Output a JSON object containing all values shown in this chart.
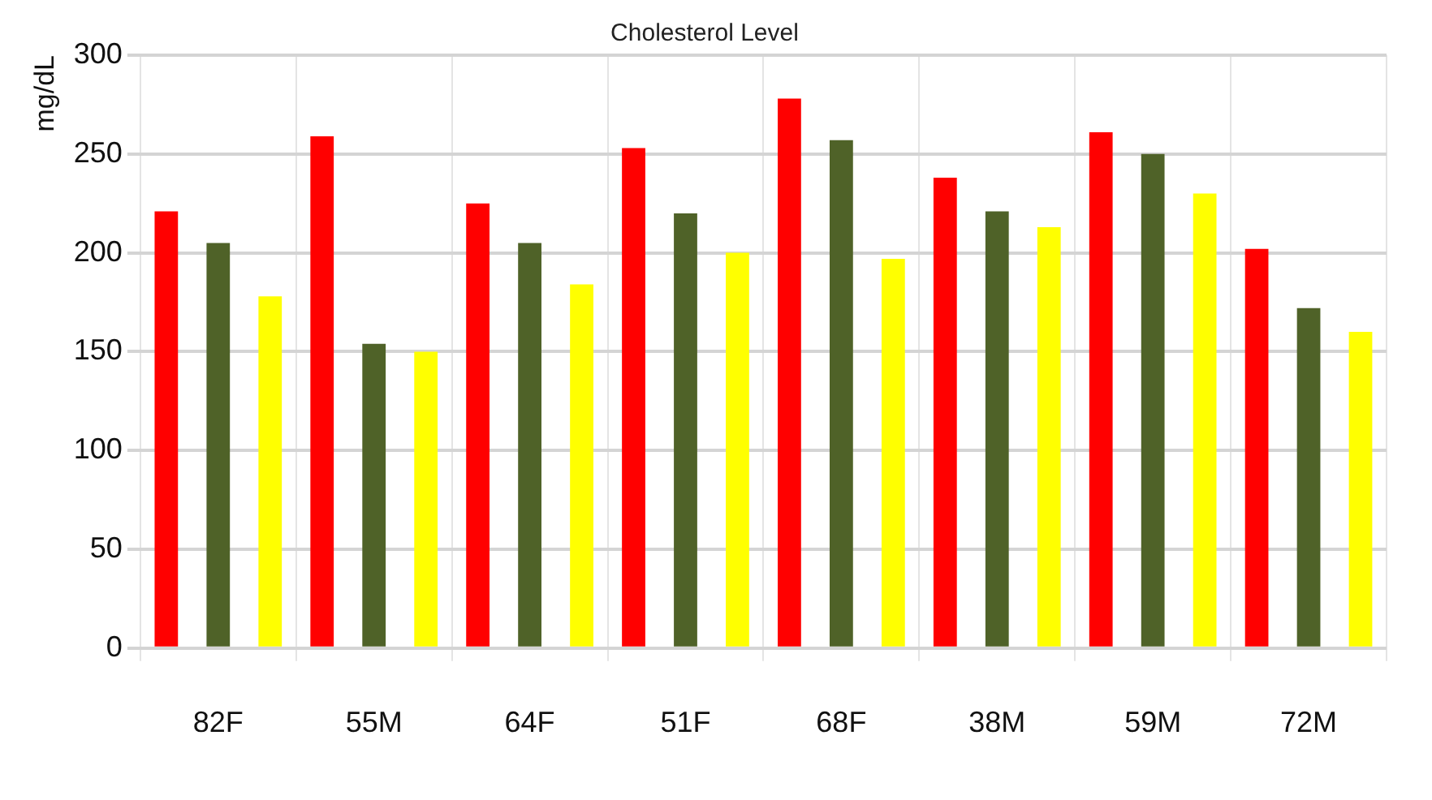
{
  "chart_data": {
    "type": "bar",
    "title": "Cholesterol Level",
    "ylabel": "mg/dL",
    "categories": [
      "82F",
      "55M",
      "64F",
      "51F",
      "68F",
      "38M",
      "59M",
      "72M"
    ],
    "series": [
      {
        "color": "#ff0000",
        "values": [
          221,
          259,
          225,
          253,
          278,
          238,
          261,
          202
        ]
      },
      {
        "color": "#4f6228",
        "values": [
          205,
          154,
          205,
          220,
          257,
          221,
          250,
          172
        ]
      },
      {
        "color": "#ffff00",
        "values": [
          178,
          150,
          184,
          200,
          197,
          213,
          230,
          160
        ]
      }
    ],
    "ylim": [
      0,
      300
    ],
    "yticks": [
      0,
      50,
      100,
      150,
      200,
      250,
      300
    ],
    "grid": true,
    "legend": false
  }
}
